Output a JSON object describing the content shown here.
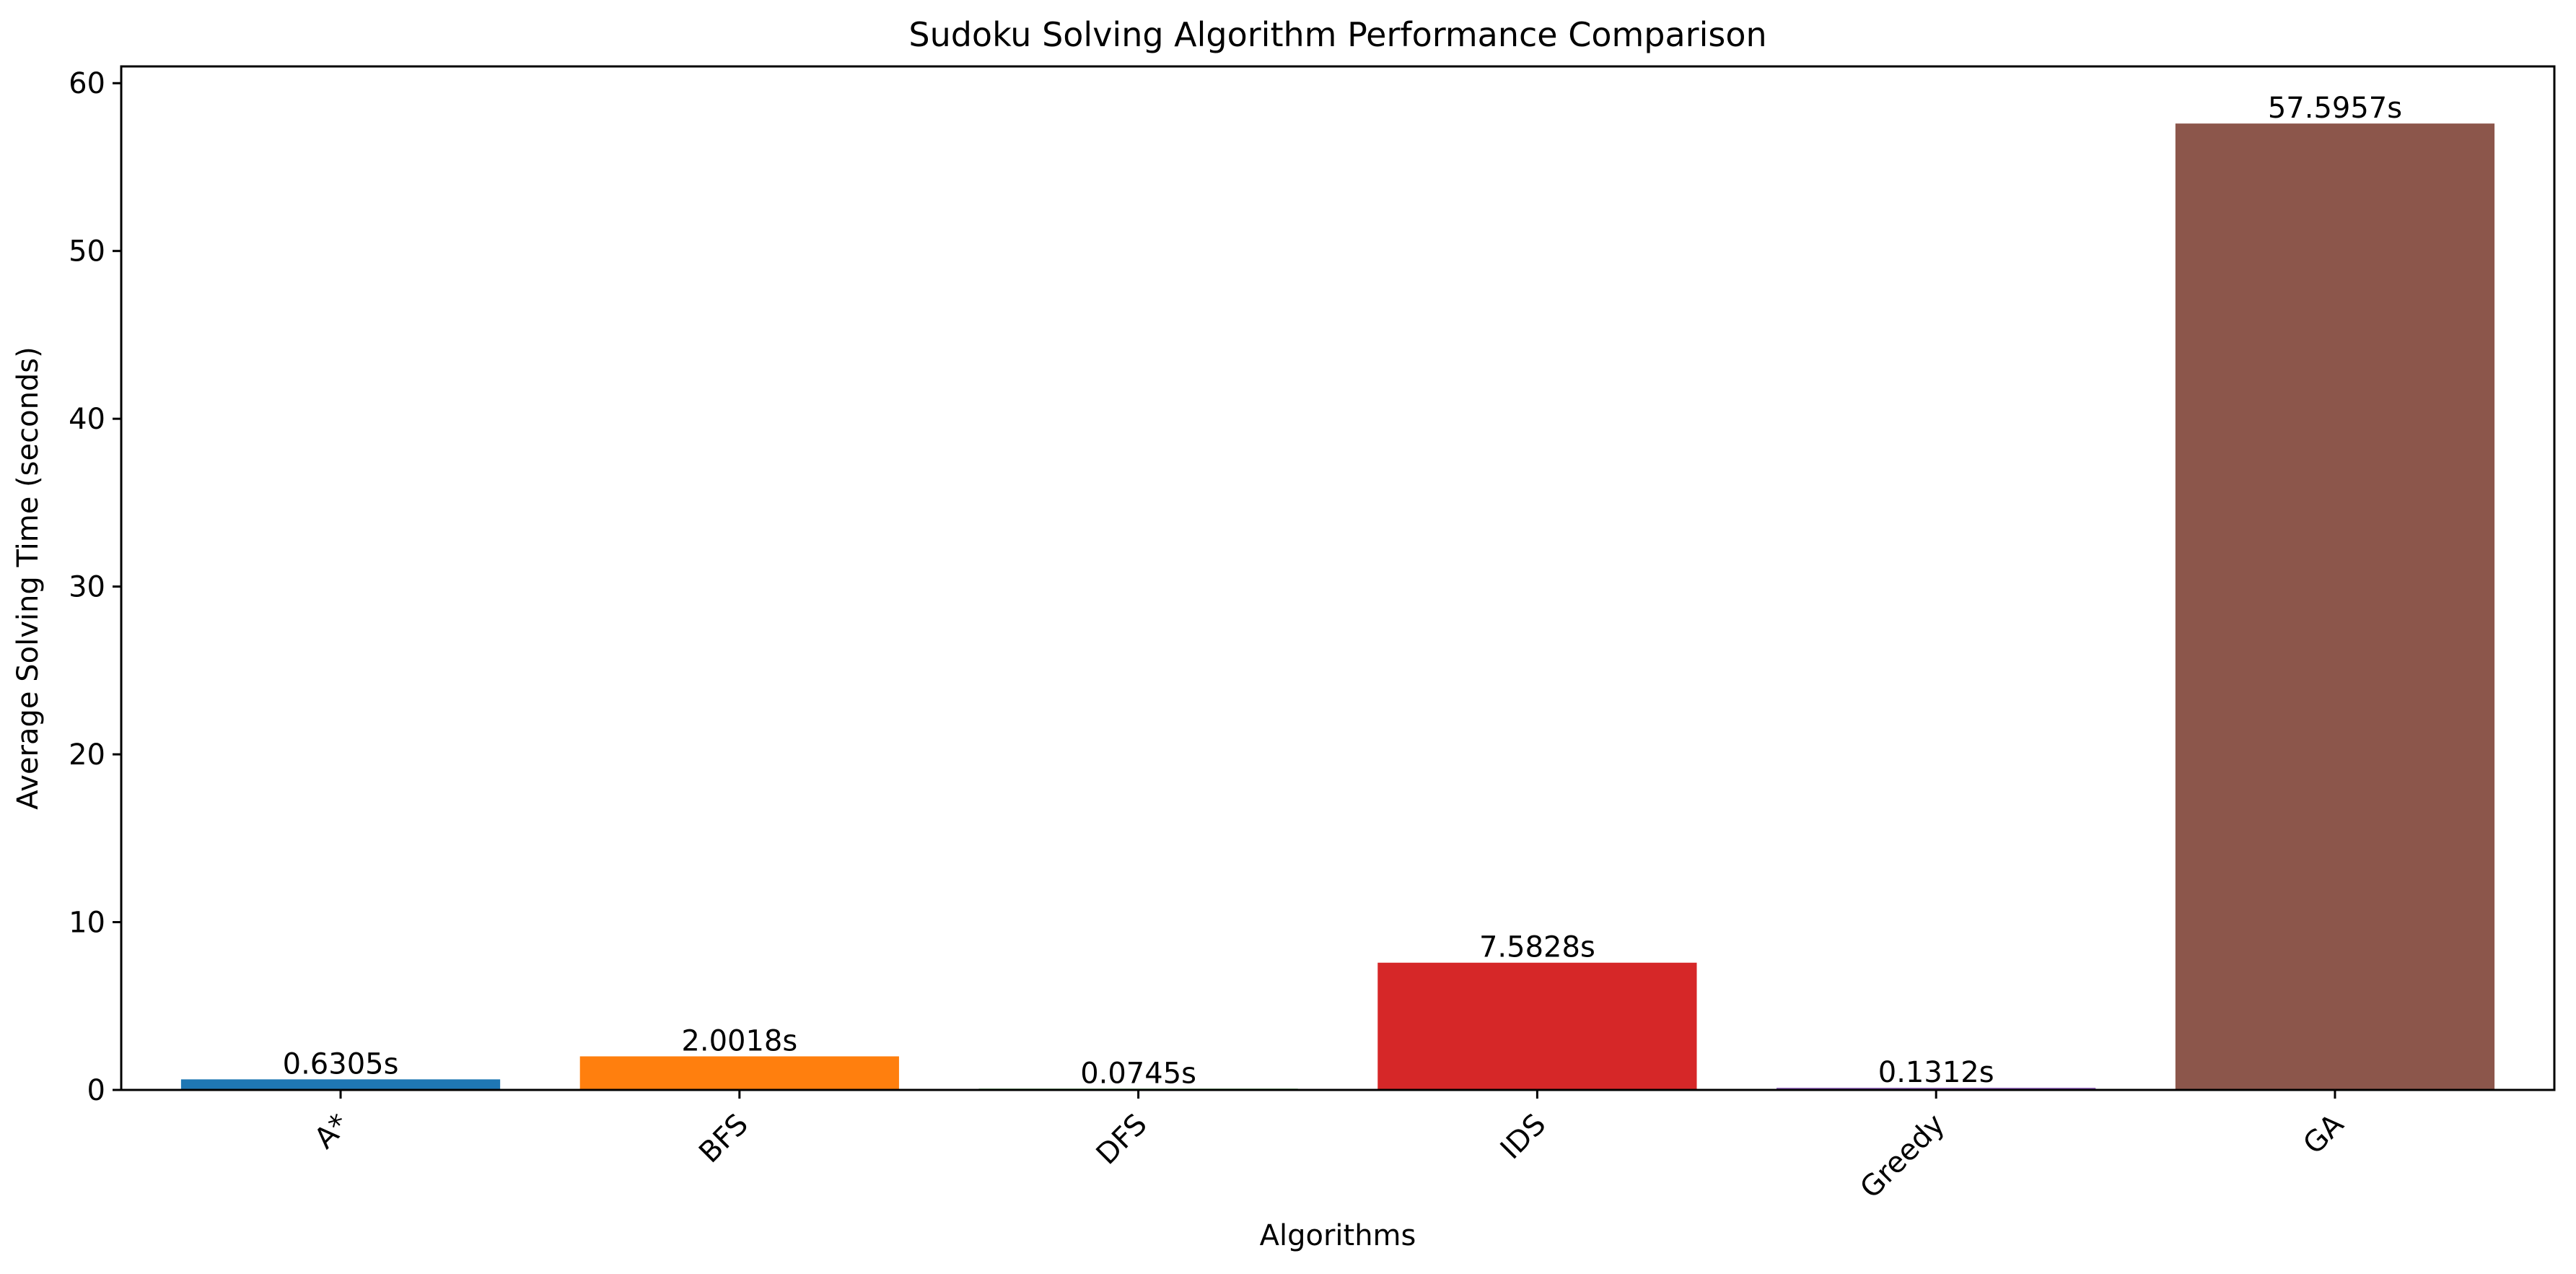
{
  "chart_data": {
    "type": "bar",
    "title": "Sudoku Solving Algorithm Performance Comparison",
    "xlabel": "Algorithms",
    "ylabel": "Average Solving Time (seconds)",
    "categories": [
      "A*",
      "BFS",
      "DFS",
      "IDS",
      "Greedy",
      "GA"
    ],
    "values": [
      0.6305,
      2.0018,
      0.0745,
      7.5828,
      0.1312,
      57.5957
    ],
    "data_labels": [
      "0.6305s",
      "2.0018s",
      "0.0745s",
      "7.5828s",
      "0.1312s",
      "57.5957s"
    ],
    "colors": [
      "#1f77b4",
      "#ff7f0e",
      "#2ca02c",
      "#d62728",
      "#9467bd",
      "#8c564b"
    ],
    "ylim": [
      0,
      61
    ],
    "yticks": [
      0,
      10,
      20,
      30,
      40,
      50,
      60
    ],
    "ytick_labels": [
      "0",
      "10",
      "20",
      "30",
      "40",
      "50",
      "60"
    ],
    "xtick_rotation": "45deg",
    "grid": false,
    "legend": "none"
  }
}
